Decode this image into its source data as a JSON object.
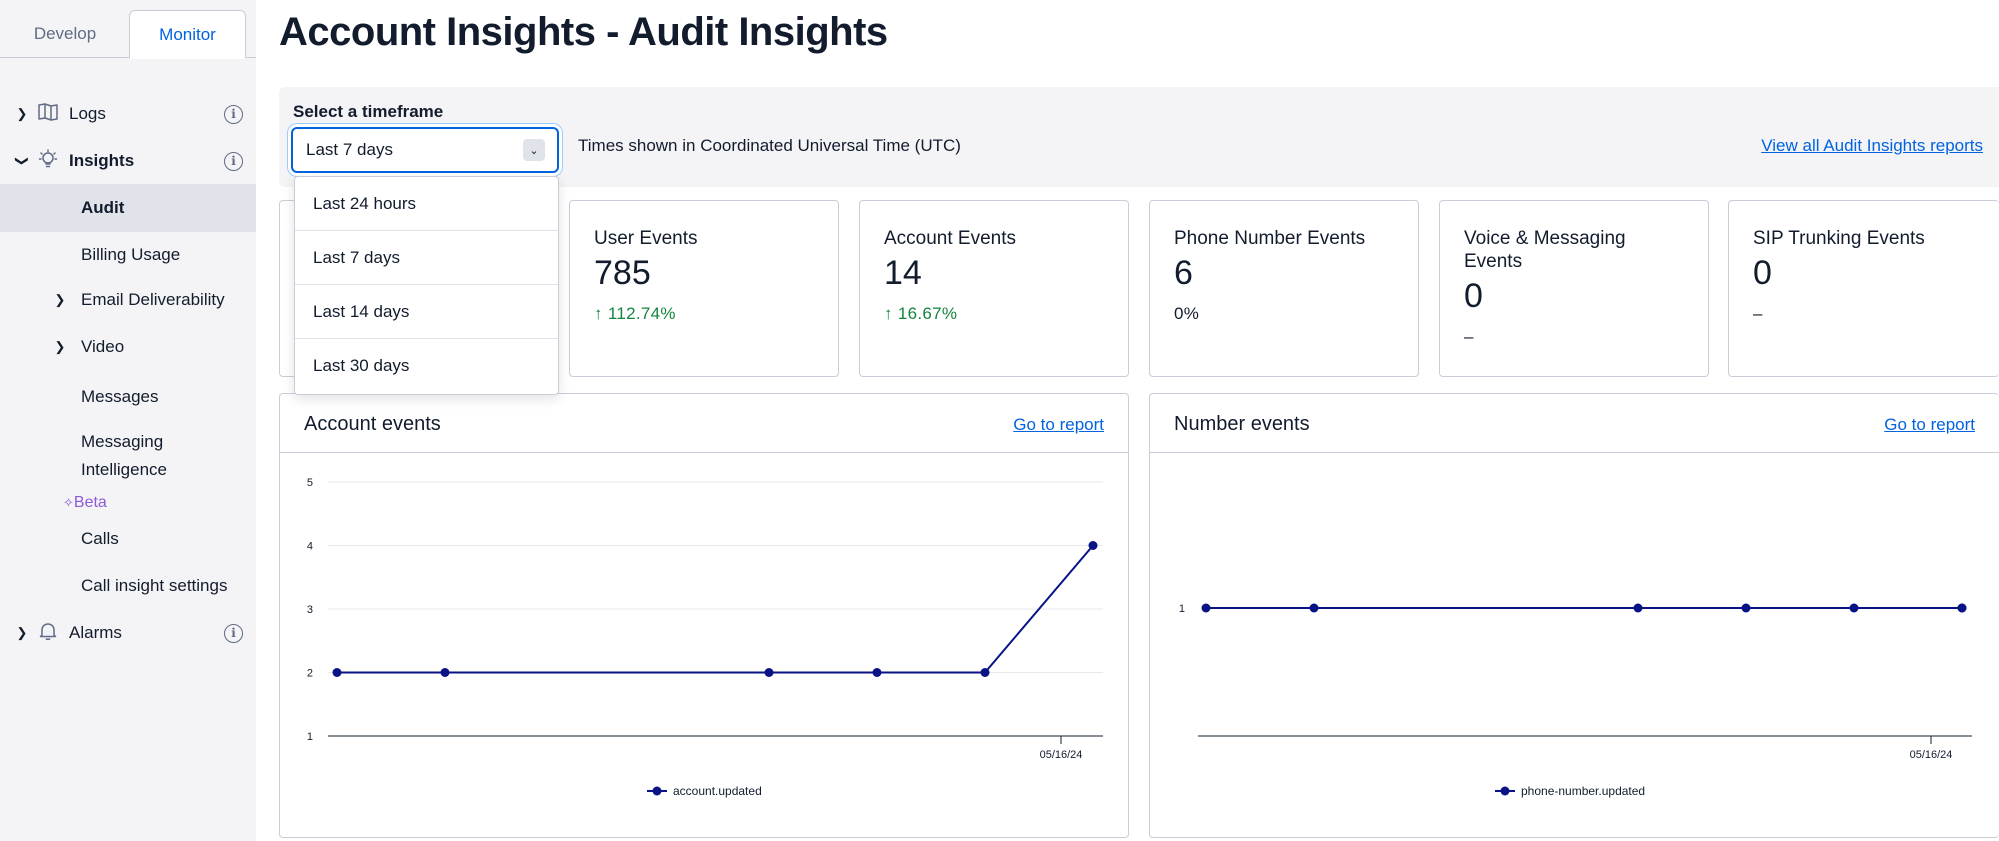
{
  "sidebar": {
    "tabs": {
      "develop": "Develop",
      "monitor": "Monitor"
    },
    "items": {
      "logs": "Logs",
      "insights": "Insights",
      "audit": "Audit",
      "billing": "Billing Usage",
      "email": "Email Deliverability",
      "video": "Video",
      "messages": "Messages",
      "messaging_intel_1": "Messaging",
      "messaging_intel_2": "Intelligence",
      "beta": "Beta",
      "calls": "Calls",
      "call_settings": "Call insight settings",
      "alarms": "Alarms"
    }
  },
  "header": {
    "title": "Account Insights - Audit Insights"
  },
  "timeframe": {
    "label": "Select a timeframe",
    "selected": "Last 7 days",
    "note": "Times shown in Coordinated Universal Time (UTC)",
    "view_all": "View all Audit Insights reports",
    "options": [
      "Last 24 hours",
      "Last 7 days",
      "Last 14 days",
      "Last 30 days"
    ]
  },
  "cards": [
    {
      "title": "User Events",
      "value": "785",
      "trend": "↑ 112.74%"
    },
    {
      "title": "Account Events",
      "value": "14",
      "trend": "↑ 16.67%"
    },
    {
      "title": "Phone Number Events",
      "value": "6",
      "trend": "0%"
    },
    {
      "title": "Voice & Messaging Events",
      "value": "0",
      "trend": "–"
    },
    {
      "title": "SIP Trunking Events",
      "value": "0",
      "trend": "–"
    }
  ],
  "panels": {
    "account": {
      "title": "Account events",
      "link": "Go to report"
    },
    "number": {
      "title": "Number events",
      "link": "Go to report"
    }
  },
  "colors": {
    "accent": "#0263e0",
    "series": "#0a1385",
    "positive": "#14853d",
    "beta": "#8c5bd8"
  },
  "chart_data": [
    {
      "type": "line",
      "ylim": [
        1,
        5
      ],
      "yticks": [
        1,
        2,
        3,
        4,
        5
      ],
      "xtick_label": "05/16/24",
      "series": [
        {
          "name": "account.updated",
          "values": [
            2,
            2,
            2,
            2,
            2,
            4
          ]
        }
      ]
    },
    {
      "type": "line",
      "yticks": [
        1
      ],
      "xtick_label": "05/16/24",
      "series": [
        {
          "name": "phone-number.updated",
          "values": [
            1,
            1,
            1,
            1,
            1,
            1,
            1
          ]
        }
      ]
    }
  ]
}
